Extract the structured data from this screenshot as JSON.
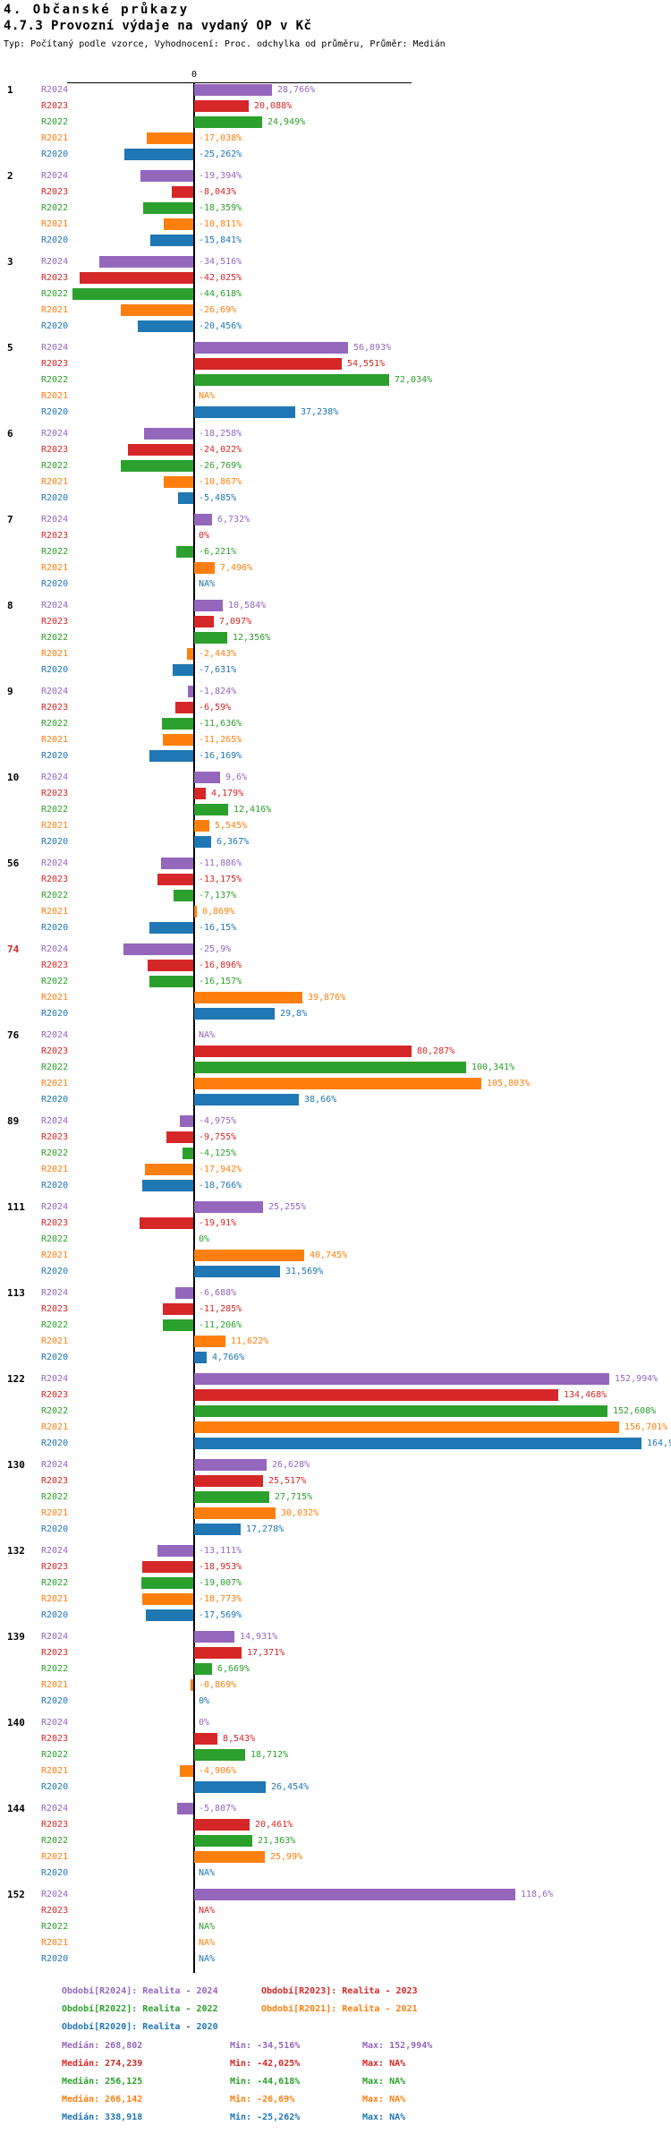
{
  "header": {
    "line1": "4. Občanské průkazy",
    "line2": "4.7.3 Provozní výdaje na vydaný OP v Kč",
    "line3": "Typ: Počítaný podle vzorce, Vyhodnocení: Proc. odchylka od průměru, Průměr: Medián"
  },
  "chart_data": {
    "type": "bar",
    "orientation": "horizontal",
    "value_unit": "%",
    "axis_zero_label": "0",
    "grid": false,
    "categories": [
      "1",
      "2",
      "3",
      "5",
      "6",
      "7",
      "8",
      "9",
      "10",
      "56",
      "74",
      "76",
      "89",
      "111",
      "113",
      "122",
      "130",
      "132",
      "139",
      "140",
      "144",
      "152"
    ],
    "category_colors": {
      "74": "#d62728"
    },
    "series_colors": {
      "R2024": "#9467bd",
      "R2023": "#d62728",
      "R2022": "#2ca02c",
      "R2021": "#ff7f0e",
      "R2020": "#1f77b4"
    },
    "series": [
      {
        "name": "R2024",
        "values": [
          28.766,
          -19.394,
          -34.516,
          56.893,
          -18.258,
          6.732,
          10.584,
          -1.824,
          9.6,
          -11.886,
          -25.9,
          null,
          -4.975,
          25.255,
          -6.688,
          152.994,
          26.628,
          -13.111,
          14.931,
          0,
          -5.807,
          118.6
        ],
        "labels": [
          "28,766%",
          "-19,394%",
          "-34,516%",
          "56,893%",
          "-18,258%",
          "6,732%",
          "10,584%",
          "-1,824%",
          "9,6%",
          "-11,886%",
          "-25,9%",
          "NA%",
          "-4,975%",
          "25,255%",
          "-6,688%",
          "152,994%",
          "26,628%",
          "-13,111%",
          "14,931%",
          "0%",
          "-5,807%",
          "118,6%"
        ]
      },
      {
        "name": "R2023",
        "values": [
          20.088,
          -8.043,
          -42.025,
          54.551,
          -24.022,
          0,
          7.097,
          -6.59,
          4.179,
          -13.175,
          -16.896,
          80.287,
          -9.755,
          -19.91,
          -11.285,
          134.468,
          25.517,
          -18.953,
          17.371,
          8.543,
          20.461,
          null
        ],
        "labels": [
          "20,088%",
          "-8,043%",
          "-42,025%",
          "54,551%",
          "-24,022%",
          "0%",
          "7,097%",
          "-6,59%",
          "4,179%",
          "-13,175%",
          "-16,896%",
          "80,287%",
          "-9,755%",
          "-19,91%",
          "-11,285%",
          "134,468%",
          "25,517%",
          "-18,953%",
          "17,371%",
          "8,543%",
          "20,461%",
          "NA%"
        ]
      },
      {
        "name": "R2022",
        "values": [
          24.949,
          -18.359,
          -44.618,
          72.034,
          -26.769,
          -6.221,
          12.356,
          -11.636,
          12.416,
          -7.137,
          -16.157,
          100.341,
          -4.125,
          0,
          -11.206,
          152.608,
          27.715,
          -19.007,
          6.669,
          18.712,
          21.363,
          null
        ],
        "labels": [
          "24,949%",
          "-18,359%",
          "-44,618%",
          "72,034%",
          "-26,769%",
          "-6,221%",
          "12,356%",
          "-11,636%",
          "12,416%",
          "-7,137%",
          "-16,157%",
          "100,341%",
          "-4,125%",
          "0%",
          "-11,206%",
          "152,608%",
          "27,715%",
          "-19,007%",
          "6,669%",
          "18,712%",
          "21,363%",
          "NA%"
        ]
      },
      {
        "name": "R2021",
        "values": [
          -17.038,
          -10.811,
          -26.69,
          null,
          -10.867,
          7.496,
          -2.443,
          -11.265,
          5.545,
          0.869,
          39.876,
          105.803,
          -17.942,
          40.745,
          11.622,
          156.701,
          30.032,
          -18.773,
          -0.869,
          -4.906,
          25.99,
          null
        ],
        "labels": [
          "-17,038%",
          "-10,811%",
          "-26,69%",
          "NA%",
          "-10,867%",
          "7,496%",
          "-2,443%",
          "-11,265%",
          "5,545%",
          "0,869%",
          "39,876%",
          "105,803%",
          "-17,942%",
          "40,745%",
          "11,622%",
          "156,701%",
          "30,032%",
          "-18,773%",
          "-0,869%",
          "-4,906%",
          "25,99%",
          "NA%"
        ]
      },
      {
        "name": "R2020",
        "values": [
          -25.262,
          -15.841,
          -20.456,
          37.238,
          -5.485,
          null,
          -7.631,
          -16.169,
          6.367,
          -16.15,
          29.8,
          38.66,
          -18.766,
          31.569,
          4.766,
          164.9,
          17.278,
          -17.569,
          0,
          26.454,
          null,
          null
        ],
        "labels": [
          "-25,262%",
          "-15,841%",
          "-20,456%",
          "37,238%",
          "-5,485%",
          "NA%",
          "-7,631%",
          "-16,169%",
          "6,367%",
          "-16,15%",
          "29,8%",
          "38,66%",
          "-18,766%",
          "31,569%",
          "4,766%",
          "164,9",
          "17,278%",
          "-17,569%",
          "0%",
          "26,454%",
          "NA%",
          "NA%"
        ]
      }
    ]
  },
  "legend": [
    {
      "label": "Období[R2024]: Realita - 2024",
      "series": "R2024"
    },
    {
      "label": "Období[R2023]: Realita - 2023",
      "series": "R2023"
    },
    {
      "label": "Období[R2022]: Realita - 2022",
      "series": "R2022"
    },
    {
      "label": "Období[R2021]: Realita - 2021",
      "series": "R2021"
    },
    {
      "label": "Období[R2020]: Realita - 2020",
      "series": "R2020"
    }
  ],
  "stats": [
    {
      "series": "R2024",
      "median": "Medián: 268,802",
      "min": "Min: -34,516%",
      "max": "Max: 152,994%"
    },
    {
      "series": "R2023",
      "median": "Medián: 274,239",
      "min": "Min: -42,025%",
      "max": "Max: NA%"
    },
    {
      "series": "R2022",
      "median": "Medián: 256,125",
      "min": "Min: -44,618%",
      "max": "Max: NA%"
    },
    {
      "series": "R2021",
      "median": "Medián: 266,142",
      "min": "Min: -26,69%",
      "max": "Max: NA%"
    },
    {
      "series": "R2020",
      "median": "Medián: 338,918",
      "min": "Min: -25,262%",
      "max": "Max: NA%"
    }
  ]
}
